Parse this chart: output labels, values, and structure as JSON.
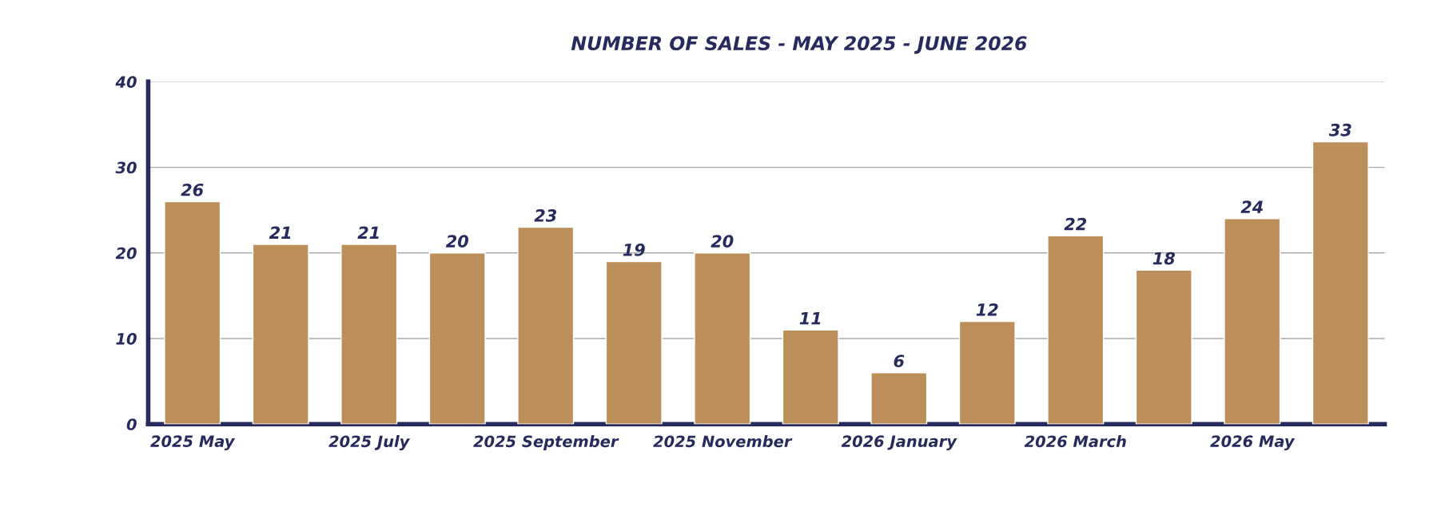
{
  "chart_data": {
    "type": "bar",
    "title": "NUMBER OF SALES - MAY 2025 - JUNE 2026",
    "categories": [
      "2025 May",
      null,
      "2025 July",
      null,
      "2025 September",
      null,
      "2025 November",
      null,
      "2026 January",
      null,
      "2026 March",
      null,
      "2026 May",
      null
    ],
    "values": [
      26,
      21,
      21,
      20,
      23,
      19,
      20,
      11,
      6,
      12,
      22,
      18,
      24,
      33
    ],
    "color": "#bc8f5a",
    "ylim": [
      0,
      40
    ],
    "yticks": [
      0,
      10,
      20,
      30,
      40
    ],
    "grid": "y",
    "data_labels": true
  }
}
